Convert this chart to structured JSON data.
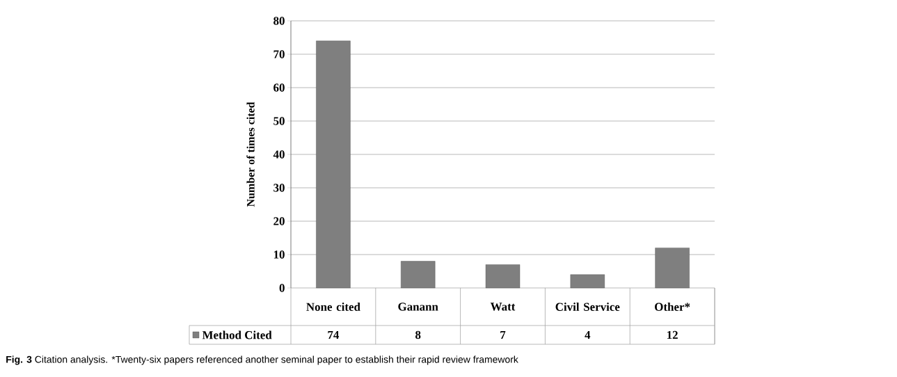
{
  "chart_data": {
    "type": "bar",
    "ylabel": "Number of times cited",
    "categories": [
      "None cited",
      "Ganann",
      "Watt",
      "Civil Service",
      "Other*"
    ],
    "series": [
      {
        "name": "Method Cited",
        "color": "#7f7f7f",
        "values": [
          74,
          8,
          7,
          4,
          12
        ]
      }
    ],
    "ylim": [
      0,
      80
    ],
    "yticks": [
      0,
      10,
      20,
      30,
      40,
      50,
      60,
      70,
      80
    ],
    "grid": "y",
    "legend": "bottom",
    "data_labels": true,
    "annotations": [
      "Fig. 3",
      "Citation analysis. *Twenty-six papers referenced another seminal paper to establish their rapid review framework"
    ]
  }
}
